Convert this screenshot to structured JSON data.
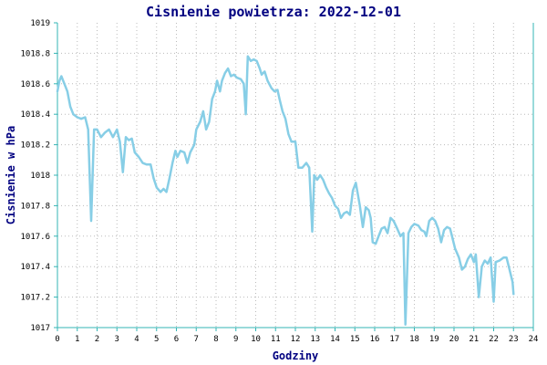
{
  "chart_data": {
    "type": "line",
    "title": "Cisnienie powietrza: 2022-12-01",
    "xlabel": "Godziny",
    "ylabel": "Cisnienie w hPa",
    "xlim": [
      0,
      24
    ],
    "ylim": [
      1017,
      1019
    ],
    "x_ticks": [
      "0",
      "1",
      "2",
      "3",
      "4",
      "5",
      "6",
      "7",
      "8",
      "9",
      "10",
      "11",
      "12",
      "13",
      "14",
      "15",
      "16",
      "17",
      "18",
      "19",
      "20",
      "21",
      "22",
      "23",
      "24"
    ],
    "y_ticks": [
      "1017",
      "1017.2",
      "1017.4",
      "1017.6",
      "1017.8",
      "1018",
      "1018.2",
      "1018.4",
      "1018.6",
      "1018.8",
      "1019"
    ],
    "grid": true,
    "series_color": "#87cee6",
    "series": [
      {
        "values": [
          [
            0.0,
            1018.55
          ],
          [
            0.1,
            1018.62
          ],
          [
            0.2,
            1018.65
          ],
          [
            0.35,
            1018.6
          ],
          [
            0.5,
            1018.55
          ],
          [
            0.65,
            1018.45
          ],
          [
            0.8,
            1018.4
          ],
          [
            1.0,
            1018.38
          ],
          [
            1.2,
            1018.37
          ],
          [
            1.4,
            1018.38
          ],
          [
            1.55,
            1018.3
          ],
          [
            1.7,
            1017.7
          ],
          [
            1.85,
            1018.3
          ],
          [
            2.0,
            1018.3
          ],
          [
            2.2,
            1018.25
          ],
          [
            2.4,
            1018.28
          ],
          [
            2.6,
            1018.3
          ],
          [
            2.8,
            1018.25
          ],
          [
            3.0,
            1018.3
          ],
          [
            3.15,
            1018.22
          ],
          [
            3.3,
            1018.02
          ],
          [
            3.45,
            1018.25
          ],
          [
            3.6,
            1018.23
          ],
          [
            3.75,
            1018.24
          ],
          [
            3.9,
            1018.15
          ],
          [
            4.1,
            1018.12
          ],
          [
            4.3,
            1018.08
          ],
          [
            4.5,
            1018.07
          ],
          [
            4.7,
            1018.07
          ],
          [
            4.85,
            1017.98
          ],
          [
            5.0,
            1017.92
          ],
          [
            5.2,
            1017.89
          ],
          [
            5.35,
            1017.91
          ],
          [
            5.5,
            1017.89
          ],
          [
            5.65,
            1017.98
          ],
          [
            5.8,
            1018.08
          ],
          [
            5.95,
            1018.16
          ],
          [
            6.05,
            1018.12
          ],
          [
            6.2,
            1018.16
          ],
          [
            6.4,
            1018.15
          ],
          [
            6.55,
            1018.08
          ],
          [
            6.7,
            1018.15
          ],
          [
            6.9,
            1018.2
          ],
          [
            7.0,
            1018.3
          ],
          [
            7.2,
            1018.35
          ],
          [
            7.35,
            1018.42
          ],
          [
            7.5,
            1018.3
          ],
          [
            7.65,
            1018.35
          ],
          [
            7.8,
            1018.5
          ],
          [
            7.95,
            1018.55
          ],
          [
            8.05,
            1018.62
          ],
          [
            8.2,
            1018.55
          ],
          [
            8.3,
            1018.62
          ],
          [
            8.45,
            1018.67
          ],
          [
            8.6,
            1018.7
          ],
          [
            8.75,
            1018.65
          ],
          [
            8.9,
            1018.66
          ],
          [
            9.05,
            1018.64
          ],
          [
            9.25,
            1018.63
          ],
          [
            9.4,
            1018.6
          ],
          [
            9.5,
            1018.4
          ],
          [
            9.6,
            1018.78
          ],
          [
            9.75,
            1018.75
          ],
          [
            9.9,
            1018.76
          ],
          [
            10.05,
            1018.75
          ],
          [
            10.2,
            1018.7
          ],
          [
            10.3,
            1018.66
          ],
          [
            10.45,
            1018.68
          ],
          [
            10.6,
            1018.62
          ],
          [
            10.8,
            1018.57
          ],
          [
            10.95,
            1018.55
          ],
          [
            11.1,
            1018.56
          ],
          [
            11.2,
            1018.5
          ],
          [
            11.35,
            1018.42
          ],
          [
            11.5,
            1018.37
          ],
          [
            11.65,
            1018.27
          ],
          [
            11.8,
            1018.22
          ],
          [
            12.0,
            1018.22
          ],
          [
            12.15,
            1018.05
          ],
          [
            12.35,
            1018.05
          ],
          [
            12.55,
            1018.08
          ],
          [
            12.7,
            1018.05
          ],
          [
            12.85,
            1017.63
          ],
          [
            12.95,
            1018.0
          ],
          [
            13.1,
            1017.97
          ],
          [
            13.25,
            1018.0
          ],
          [
            13.4,
            1017.97
          ],
          [
            13.55,
            1017.92
          ],
          [
            13.7,
            1017.88
          ],
          [
            13.85,
            1017.85
          ],
          [
            14.0,
            1017.8
          ],
          [
            14.15,
            1017.78
          ],
          [
            14.3,
            1017.72
          ],
          [
            14.45,
            1017.75
          ],
          [
            14.6,
            1017.76
          ],
          [
            14.75,
            1017.74
          ],
          [
            14.9,
            1017.9
          ],
          [
            15.05,
            1017.95
          ],
          [
            15.25,
            1017.8
          ],
          [
            15.4,
            1017.66
          ],
          [
            15.55,
            1017.79
          ],
          [
            15.7,
            1017.77
          ],
          [
            15.8,
            1017.72
          ],
          [
            15.9,
            1017.56
          ],
          [
            16.05,
            1017.55
          ],
          [
            16.2,
            1017.6
          ],
          [
            16.35,
            1017.65
          ],
          [
            16.5,
            1017.66
          ],
          [
            16.65,
            1017.62
          ],
          [
            16.8,
            1017.72
          ],
          [
            16.95,
            1017.7
          ],
          [
            17.1,
            1017.66
          ],
          [
            17.3,
            1017.6
          ],
          [
            17.45,
            1017.62
          ],
          [
            17.55,
            1017.02
          ],
          [
            17.7,
            1017.62
          ],
          [
            17.85,
            1017.66
          ],
          [
            18.0,
            1017.68
          ],
          [
            18.2,
            1017.67
          ],
          [
            18.35,
            1017.64
          ],
          [
            18.5,
            1017.63
          ],
          [
            18.6,
            1017.6
          ],
          [
            18.75,
            1017.7
          ],
          [
            18.9,
            1017.72
          ],
          [
            19.05,
            1017.7
          ],
          [
            19.2,
            1017.65
          ],
          [
            19.35,
            1017.56
          ],
          [
            19.5,
            1017.64
          ],
          [
            19.65,
            1017.66
          ],
          [
            19.8,
            1017.65
          ],
          [
            19.9,
            1017.6
          ],
          [
            20.05,
            1017.52
          ],
          [
            20.25,
            1017.46
          ],
          [
            20.4,
            1017.38
          ],
          [
            20.55,
            1017.4
          ],
          [
            20.7,
            1017.45
          ],
          [
            20.85,
            1017.48
          ],
          [
            21.0,
            1017.43
          ],
          [
            21.1,
            1017.48
          ],
          [
            21.25,
            1017.2
          ],
          [
            21.4,
            1017.4
          ],
          [
            21.55,
            1017.44
          ],
          [
            21.7,
            1017.42
          ],
          [
            21.85,
            1017.46
          ],
          [
            22.0,
            1017.17
          ],
          [
            22.1,
            1017.43
          ],
          [
            22.3,
            1017.44
          ],
          [
            22.5,
            1017.46
          ],
          [
            22.65,
            1017.46
          ],
          [
            22.8,
            1017.38
          ],
          [
            22.95,
            1017.3
          ],
          [
            23.0,
            1017.22
          ]
        ]
      }
    ]
  }
}
